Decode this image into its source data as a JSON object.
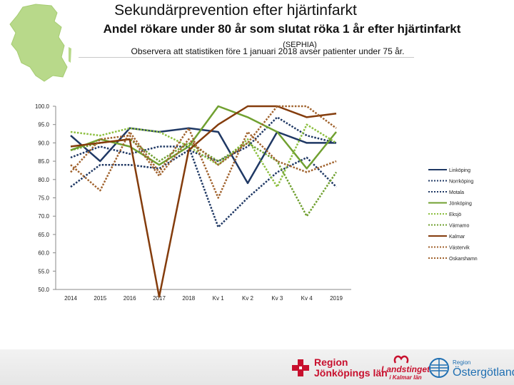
{
  "header": {
    "title": "Sekundärprevention efter hjärtinfarkt",
    "subtitle": "Andel rökare under 80 år som slutat röka 1 år efter hjärtinfarkt",
    "source": "(SEPHIA)",
    "note": "Observera att statistiken före 1 januari 2018 avser patienter under 75 år."
  },
  "chart_data": {
    "type": "line",
    "title": "Andel rökare under 80 år som slutat röka 1 år efter hjärtinfarkt",
    "xlabel": "",
    "ylabel": "",
    "ylim": [
      50,
      100
    ],
    "yticks": [
      "100.0",
      "95.0",
      "90.0",
      "85.0",
      "80.0",
      "75.0",
      "70.0",
      "65.0",
      "60.0",
      "55.0",
      "50.0"
    ],
    "categories": [
      "2014",
      "2015",
      "2016",
      "2017",
      "2018",
      "Kv 1",
      "Kv 2",
      "Kv 3",
      "Kv 4",
      "2019"
    ],
    "legend_position": "right",
    "series": [
      {
        "name": "Linköping",
        "color": "#1f3864",
        "dash": "solid",
        "values": [
          92,
          85,
          94,
          93,
          94,
          93,
          79,
          93,
          90,
          90
        ]
      },
      {
        "name": "Norrköping",
        "color": "#1f3864",
        "dash": "dotted",
        "values": [
          78,
          84,
          84,
          83,
          88,
          85,
          89,
          97,
          92,
          90
        ]
      },
      {
        "name": "Motala",
        "color": "#1f3864",
        "dash": "dotted",
        "values": [
          86,
          89,
          87,
          89,
          89,
          67,
          75,
          82,
          86,
          78
        ]
      },
      {
        "name": "Jönköping",
        "color": "#70a030",
        "dash": "solid",
        "values": [
          88,
          91,
          89,
          84,
          89,
          100,
          97,
          93,
          83,
          93
        ]
      },
      {
        "name": "Eksjö",
        "color": "#8cbf3f",
        "dash": "dotted",
        "values": [
          93,
          92,
          94,
          93,
          89,
          84,
          91,
          78,
          95,
          90
        ]
      },
      {
        "name": "Värnamo",
        "color": "#70a030",
        "dash": "dotted",
        "values": [
          88,
          90,
          91,
          85,
          90,
          85,
          90,
          85,
          70,
          82
        ]
      },
      {
        "name": "Kalmar",
        "color": "#843c0c",
        "dash": "solid",
        "values": [
          89,
          90,
          91,
          48,
          88,
          95,
          100,
          100,
          97,
          98
        ]
      },
      {
        "name": "Västervik",
        "color": "#a0622d",
        "dash": "dotted",
        "values": [
          84,
          77,
          93,
          82,
          94,
          75,
          93,
          85,
          82,
          85
        ]
      },
      {
        "name": "Oskarshamn",
        "color": "#a0622d",
        "dash": "dotted",
        "values": [
          82,
          91,
          92,
          81,
          91,
          84,
          90,
          100,
          100,
          94
        ]
      }
    ]
  },
  "footer": {
    "logo1": [
      "Region",
      "Jönköpings län"
    ],
    "logo2": [
      "Landstinget",
      "i Kalmar län"
    ],
    "logo3": [
      "Region",
      "Östergötland"
    ]
  }
}
